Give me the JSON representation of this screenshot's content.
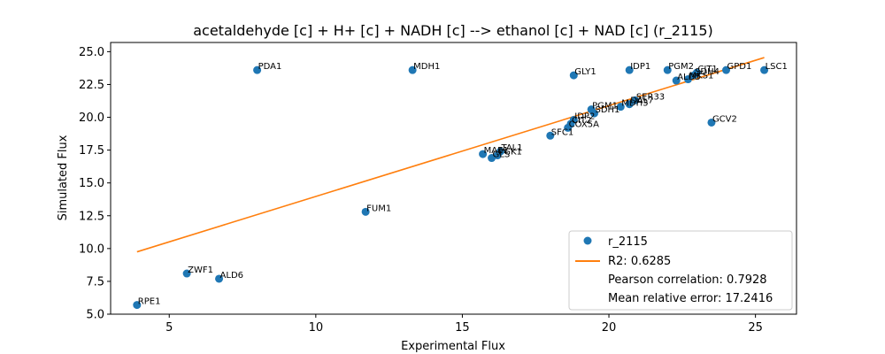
{
  "chart_data": {
    "type": "scatter",
    "title": "acetaldehyde [c] + H+ [c] + NADH [c] --> ethanol [c] + NAD [c] (r_2115)",
    "xlabel": "Experimental Flux",
    "ylabel": "Simulated Flux",
    "xlim": [
      3.0,
      26.4
    ],
    "ylim": [
      5.0,
      25.7
    ],
    "xticks": [
      5,
      10,
      15,
      20,
      25
    ],
    "yticks": [
      5.0,
      7.5,
      10.0,
      12.5,
      15.0,
      17.5,
      20.0,
      22.5,
      25.0
    ],
    "ytick_labels": [
      "5.0",
      "7.5",
      "10.0",
      "12.5",
      "15.0",
      "17.5",
      "20.0",
      "22.5",
      "25.0"
    ],
    "grid": false,
    "legend_position": "lower-right",
    "colors": {
      "points": "#1f77b4",
      "fit_line": "#ff7f0e"
    },
    "series": [
      {
        "name": "r_2115",
        "points": [
          {
            "label": "RPE1",
            "x": 3.9,
            "y": 5.7
          },
          {
            "label": "ZWF1",
            "x": 5.6,
            "y": 8.1
          },
          {
            "label": "ALD6",
            "x": 6.7,
            "y": 7.7
          },
          {
            "label": "PDA1",
            "x": 8.0,
            "y": 23.6
          },
          {
            "label": "FUM1",
            "x": 11.7,
            "y": 12.8
          },
          {
            "label": "MDH1",
            "x": 13.3,
            "y": 23.6
          },
          {
            "label": "MAE1",
            "x": 15.7,
            "y": 17.2
          },
          {
            "label": "GLS",
            "x": 16.0,
            "y": 16.9
          },
          {
            "label": "PGK1",
            "x": 16.2,
            "y": 17.1
          },
          {
            "label": "TAL1",
            "x": 16.3,
            "y": 17.4
          },
          {
            "label": "SFC1",
            "x": 18.0,
            "y": 18.6
          },
          {
            "label": "COX5A",
            "x": 18.6,
            "y": 19.2
          },
          {
            "label": "CIT2",
            "x": 18.7,
            "y": 19.5
          },
          {
            "label": "IDP2",
            "x": 18.8,
            "y": 19.8
          },
          {
            "label": "GLY1",
            "x": 18.8,
            "y": 23.2
          },
          {
            "label": "PGM1",
            "x": 19.4,
            "y": 20.6
          },
          {
            "label": "SDH1",
            "x": 19.5,
            "y": 20.3
          },
          {
            "label": "MDH3",
            "x": 20.4,
            "y": 20.8
          },
          {
            "label": "DAL7",
            "x": 20.7,
            "y": 21.0
          },
          {
            "label": "IDP1",
            "x": 20.7,
            "y": 23.6
          },
          {
            "label": "SER33",
            "x": 20.9,
            "y": 21.3
          },
          {
            "label": "PGM2",
            "x": 22.0,
            "y": 23.6
          },
          {
            "label": "ALD5",
            "x": 22.3,
            "y": 22.8
          },
          {
            "label": "MKS1",
            "x": 22.7,
            "y": 22.9
          },
          {
            "label": "SDH4",
            "x": 22.9,
            "y": 23.2
          },
          {
            "label": "CIT1",
            "x": 23.0,
            "y": 23.4
          },
          {
            "label": "GCV2",
            "x": 23.5,
            "y": 19.6
          },
          {
            "label": "GPD1",
            "x": 24.0,
            "y": 23.6
          },
          {
            "label": "LSC1",
            "x": 25.3,
            "y": 23.6
          }
        ]
      },
      {
        "name": "R2: 0.6285",
        "type": "line",
        "x": [
          3.9,
          25.3
        ],
        "y": [
          9.75,
          24.55
        ]
      }
    ],
    "annotations": [
      "Pearson correlation: 0.7928",
      "Mean relative error: 17.2416"
    ]
  }
}
